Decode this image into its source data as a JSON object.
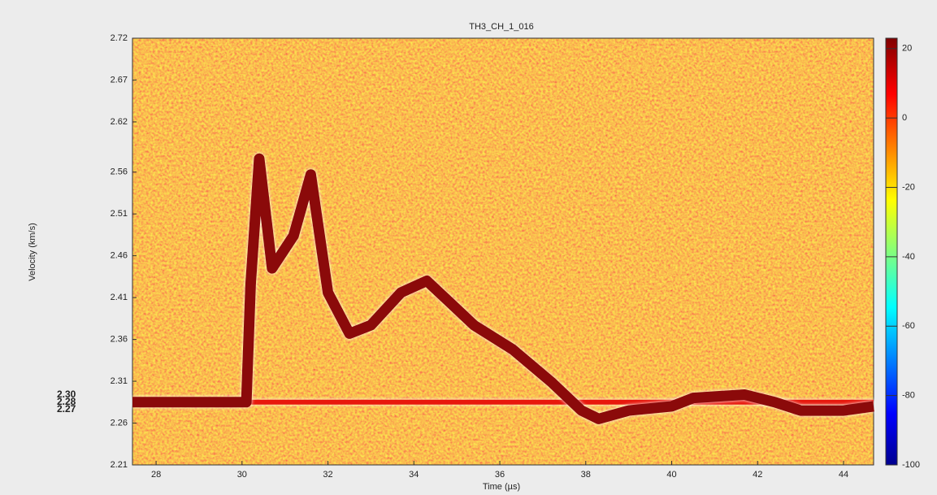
{
  "chart_data": {
    "type": "line",
    "title": "TH3_CH_1_016",
    "x_label": "Time (µs)",
    "y_label": "Velocity (km/s)",
    "xlim": [
      27.45,
      44.7
    ],
    "ylim": [
      2.21,
      2.72
    ],
    "xticks": [
      28,
      30,
      32,
      34,
      36,
      38,
      40,
      42,
      44
    ],
    "yticks": [
      2.21,
      2.26,
      2.31,
      2.36,
      2.41,
      2.46,
      2.51,
      2.56,
      2.62,
      2.67,
      2.72
    ],
    "colorbar": {
      "lim": [
        -100,
        23
      ],
      "ticks": [
        20,
        0,
        -20,
        -40,
        -60,
        -80,
        -100
      ]
    },
    "annotations": [
      "2.30",
      "2.28",
      "2.27"
    ],
    "series": [
      {
        "color": "#8b0a0a",
        "x": [
          27.45,
          30.1,
          30.2,
          30.4,
          30.7,
          31.2,
          31.6,
          32.0,
          32.5,
          33.0,
          33.7,
          34.3,
          34.8,
          35.4,
          36.3,
          37.2,
          37.9,
          38.3,
          39.0,
          40.0,
          40.5,
          41.7,
          42.4,
          43.0,
          44.0,
          44.7
        ],
        "values": [
          2.285,
          2.285,
          2.426,
          2.576,
          2.445,
          2.484,
          2.557,
          2.416,
          2.367,
          2.377,
          2.416,
          2.43,
          2.406,
          2.377,
          2.348,
          2.309,
          2.275,
          2.265,
          2.275,
          2.28,
          2.29,
          2.294,
          2.285,
          2.275,
          2.275,
          2.28
        ]
      },
      {
        "color": "#e8180c",
        "x": [
          30.2,
          44.7
        ],
        "values": [
          2.285,
          2.285
        ]
      }
    ]
  }
}
